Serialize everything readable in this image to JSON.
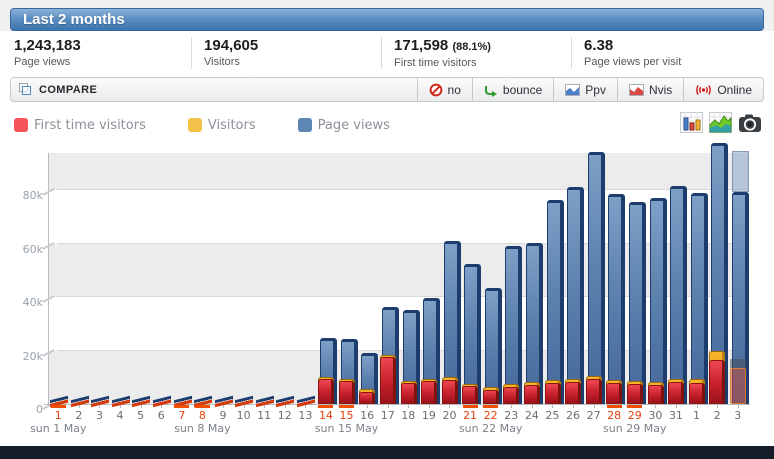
{
  "header": {
    "title": "Last 2 months"
  },
  "stats": [
    {
      "value": "1,243,183",
      "suffix": "",
      "label": "Page views"
    },
    {
      "value": "194,605",
      "suffix": "",
      "label": "Visitors"
    },
    {
      "value": "171,598",
      "suffix": "(88.1%)",
      "label": "First time visitors"
    },
    {
      "value": "6.38",
      "suffix": "",
      "label": "Page views per visit"
    }
  ],
  "compare": {
    "label": "COMPARE",
    "buttons": [
      {
        "icon": "no-icon",
        "label": "no"
      },
      {
        "icon": "bounce-icon",
        "label": "bounce"
      },
      {
        "icon": "ppv-chart-icon",
        "label": "Ppv"
      },
      {
        "icon": "nvis-chart-icon",
        "label": "Nvis"
      },
      {
        "icon": "online-icon",
        "label": "Online"
      }
    ]
  },
  "legend": [
    {
      "label": "First time visitors",
      "color": "#f4555a"
    },
    {
      "label": "Visitors",
      "color": "#f3c24b"
    },
    {
      "label": "Page views",
      "color": "#5c87b2"
    }
  ],
  "chart_icons": [
    "bar-chart-icon",
    "area-chart-icon",
    "camera-icon"
  ],
  "chart_data": {
    "type": "bar",
    "title": "",
    "xlabel": "",
    "ylabel": "",
    "ylim": [
      0,
      94000
    ],
    "grid": "horizontal-bands",
    "legend_position": "top-left",
    "y_ticks": [
      {
        "label": "0",
        "value": 0
      },
      {
        "label": "20k",
        "value": 20000
      },
      {
        "label": "40k",
        "value": 40000
      },
      {
        "label": "60k",
        "value": 60000
      },
      {
        "label": "80k",
        "value": 80000
      }
    ],
    "days": [
      {
        "label": "1",
        "weekend": true,
        "week_label": "sun 1 May"
      },
      {
        "label": "2",
        "weekend": false,
        "week_label": ""
      },
      {
        "label": "3",
        "weekend": false,
        "week_label": ""
      },
      {
        "label": "4",
        "weekend": false,
        "week_label": ""
      },
      {
        "label": "5",
        "weekend": false,
        "week_label": ""
      },
      {
        "label": "6",
        "weekend": false,
        "week_label": ""
      },
      {
        "label": "7",
        "weekend": true,
        "week_label": ""
      },
      {
        "label": "8",
        "weekend": true,
        "week_label": "sun 8 May"
      },
      {
        "label": "9",
        "weekend": false,
        "week_label": ""
      },
      {
        "label": "10",
        "weekend": false,
        "week_label": ""
      },
      {
        "label": "11",
        "weekend": false,
        "week_label": ""
      },
      {
        "label": "12",
        "weekend": false,
        "week_label": ""
      },
      {
        "label": "13",
        "weekend": false,
        "week_label": ""
      },
      {
        "label": "14",
        "weekend": true,
        "week_label": ""
      },
      {
        "label": "15",
        "weekend": true,
        "week_label": "sun 15 May"
      },
      {
        "label": "16",
        "weekend": false,
        "week_label": ""
      },
      {
        "label": "17",
        "weekend": false,
        "week_label": ""
      },
      {
        "label": "18",
        "weekend": false,
        "week_label": ""
      },
      {
        "label": "19",
        "weekend": false,
        "week_label": ""
      },
      {
        "label": "20",
        "weekend": false,
        "week_label": ""
      },
      {
        "label": "21",
        "weekend": true,
        "week_label": ""
      },
      {
        "label": "22",
        "weekend": true,
        "week_label": "sun 22 May"
      },
      {
        "label": "23",
        "weekend": false,
        "week_label": ""
      },
      {
        "label": "24",
        "weekend": false,
        "week_label": ""
      },
      {
        "label": "25",
        "weekend": false,
        "week_label": ""
      },
      {
        "label": "26",
        "weekend": false,
        "week_label": ""
      },
      {
        "label": "27",
        "weekend": false,
        "week_label": ""
      },
      {
        "label": "28",
        "weekend": true,
        "week_label": ""
      },
      {
        "label": "29",
        "weekend": true,
        "week_label": "sun 29 May"
      },
      {
        "label": "30",
        "weekend": false,
        "week_label": ""
      },
      {
        "label": "31",
        "weekend": false,
        "week_label": ""
      },
      {
        "label": "1",
        "weekend": false,
        "week_label": ""
      },
      {
        "label": "2",
        "weekend": false,
        "week_label": ""
      },
      {
        "label": "3",
        "weekend": false,
        "week_label": ""
      }
    ],
    "series": [
      {
        "name": "Page views",
        "color": "#4a6f9e",
        "values": [
          800,
          900,
          900,
          850,
          900,
          850,
          800,
          900,
          950,
          900,
          950,
          900,
          1000,
          24600,
          24200,
          19000,
          36200,
          35000,
          39500,
          61000,
          52500,
          43500,
          59000,
          60200,
          76300,
          81000,
          94300,
          78500,
          75600,
          77200,
          81400,
          79000,
          97700,
          94500
        ]
      },
      {
        "name": "Visitors",
        "color": "#f2a81d",
        "values": [
          500,
          500,
          550,
          500,
          500,
          500,
          450,
          500,
          550,
          500,
          550,
          500,
          600,
          10200,
          9500,
          5600,
          18400,
          8600,
          9400,
          10000,
          7500,
          6200,
          7600,
          8100,
          9100,
          9200,
          10400,
          9000,
          8700,
          8200,
          9300,
          9200,
          20000,
          17000
        ]
      },
      {
        "name": "First time visitors",
        "color": "#cc2630",
        "values": [
          400,
          400,
          450,
          400,
          400,
          400,
          380,
          420,
          450,
          420,
          450,
          430,
          480,
          9300,
          8600,
          4600,
          17600,
          7700,
          8500,
          9000,
          6600,
          5200,
          6500,
          7000,
          8000,
          8100,
          9200,
          7900,
          7600,
          7100,
          8100,
          8000,
          16500,
          13500
        ]
      }
    ],
    "partial_last_day": {
      "index": 33,
      "pageviews_solid": 79400,
      "pageviews_projected": 94500,
      "visitors": 17000,
      "first_time": 13500
    }
  }
}
